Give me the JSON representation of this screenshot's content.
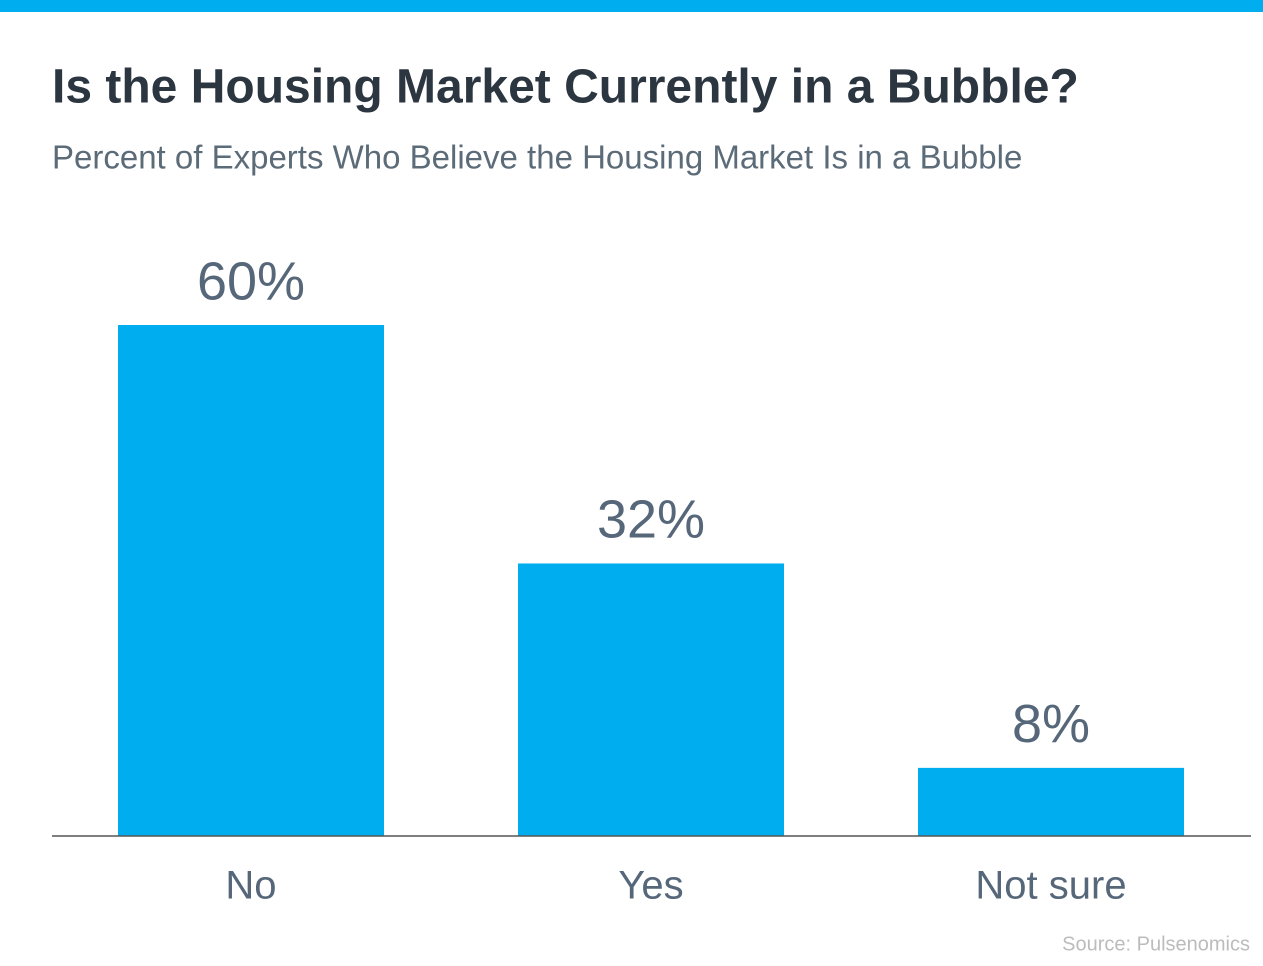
{
  "chart_data": {
    "type": "bar",
    "title": "Is the Housing Market Currently in a Bubble?",
    "subtitle": "Percent of Experts Who Believe the Housing Market Is in a Bubble",
    "categories": [
      "No",
      "Yes",
      "Not sure"
    ],
    "values": [
      60,
      32,
      8
    ],
    "value_labels": [
      "60%",
      "32%",
      "8%"
    ],
    "color": "#00aeef",
    "source": "Source: Pulsenomics"
  }
}
